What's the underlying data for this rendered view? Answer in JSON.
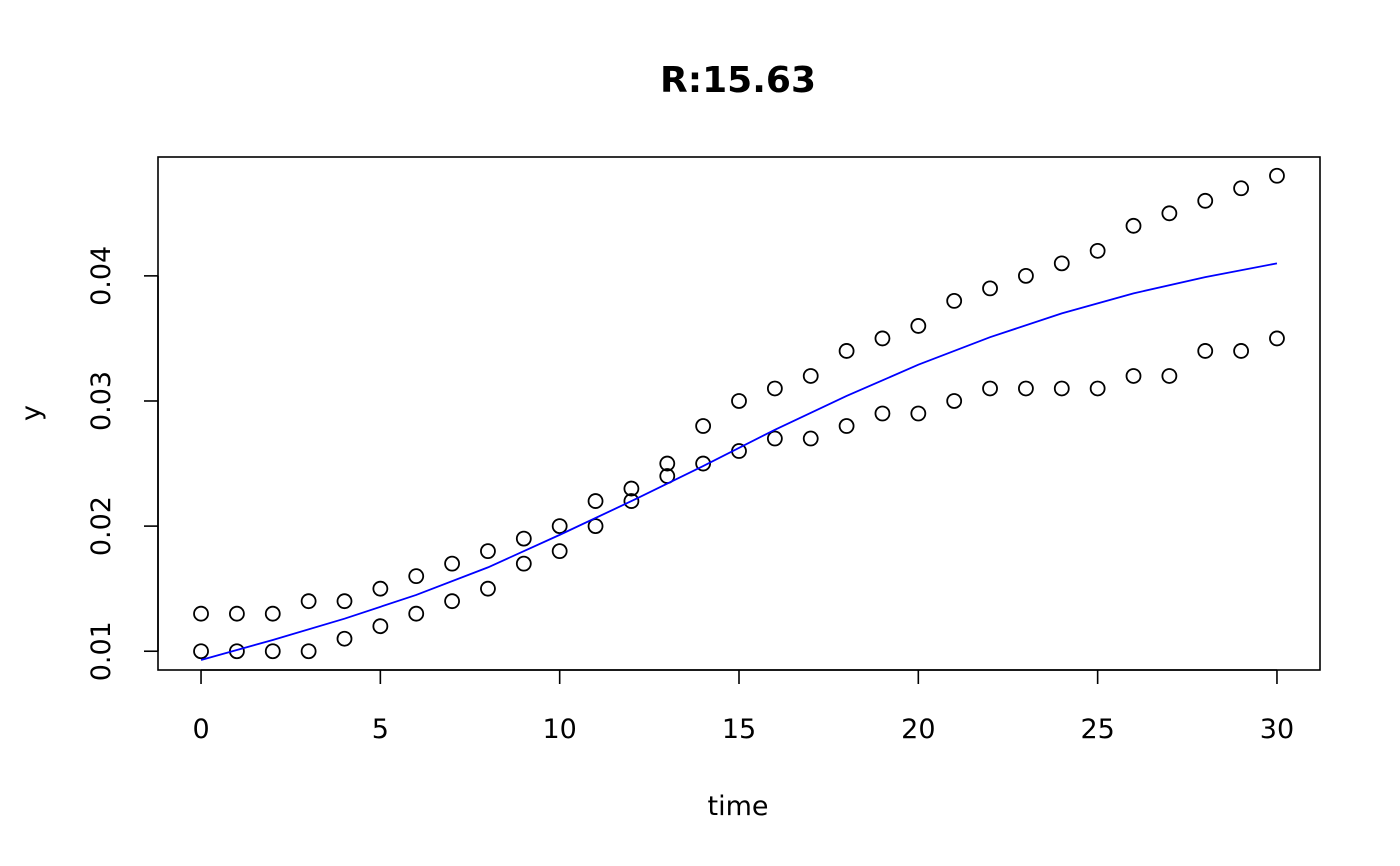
{
  "chart_data": {
    "type": "scatter",
    "title": "R:15.63",
    "xlabel": "time",
    "ylabel": "y",
    "xlim": [
      -1.2,
      31.2
    ],
    "ylim": [
      0.0085,
      0.0495
    ],
    "x_ticks": [
      0,
      5,
      10,
      15,
      20,
      25,
      30
    ],
    "x_tick_labels": [
      "0",
      "5",
      "10",
      "15",
      "20",
      "25",
      "30"
    ],
    "y_ticks": [
      0.01,
      0.02,
      0.03,
      0.04
    ],
    "y_tick_labels": [
      "0.01",
      "0.02",
      "0.03",
      "0.04"
    ],
    "grid": false,
    "legend": "none",
    "series": [
      {
        "kind": "points",
        "marker": "open-circle",
        "color": "#000000",
        "points": [
          [
            0,
            0.013
          ],
          [
            1,
            0.013
          ],
          [
            2,
            0.013
          ],
          [
            3,
            0.014
          ],
          [
            4,
            0.014
          ],
          [
            5,
            0.015
          ],
          [
            6,
            0.016
          ],
          [
            7,
            0.017
          ],
          [
            8,
            0.018
          ],
          [
            9,
            0.019
          ],
          [
            10,
            0.02
          ],
          [
            11,
            0.022
          ],
          [
            12,
            0.023
          ],
          [
            13,
            0.025
          ],
          [
            14,
            0.028
          ],
          [
            15,
            0.03
          ],
          [
            16,
            0.031
          ],
          [
            17,
            0.032
          ],
          [
            18,
            0.034
          ],
          [
            19,
            0.035
          ],
          [
            20,
            0.036
          ],
          [
            21,
            0.038
          ],
          [
            22,
            0.039
          ],
          [
            23,
            0.04
          ],
          [
            24,
            0.041
          ],
          [
            25,
            0.042
          ],
          [
            26,
            0.044
          ],
          [
            27,
            0.045
          ],
          [
            28,
            0.046
          ],
          [
            29,
            0.047
          ],
          [
            30,
            0.048
          ],
          [
            0,
            0.01
          ],
          [
            1,
            0.01
          ],
          [
            2,
            0.01
          ],
          [
            3,
            0.01
          ],
          [
            4,
            0.011
          ],
          [
            5,
            0.012
          ],
          [
            6,
            0.013
          ],
          [
            7,
            0.014
          ],
          [
            8,
            0.015
          ],
          [
            9,
            0.017
          ],
          [
            10,
            0.018
          ],
          [
            11,
            0.02
          ],
          [
            12,
            0.022
          ],
          [
            13,
            0.024
          ],
          [
            14,
            0.025
          ],
          [
            15,
            0.026
          ],
          [
            16,
            0.027
          ],
          [
            17,
            0.027
          ],
          [
            18,
            0.028
          ],
          [
            19,
            0.029
          ],
          [
            20,
            0.029
          ],
          [
            21,
            0.03
          ],
          [
            22,
            0.031
          ],
          [
            23,
            0.031
          ],
          [
            24,
            0.031
          ],
          [
            25,
            0.031
          ],
          [
            26,
            0.032
          ],
          [
            27,
            0.032
          ],
          [
            28,
            0.034
          ],
          [
            29,
            0.034
          ],
          [
            30,
            0.035
          ]
        ]
      },
      {
        "kind": "line",
        "color": "#0000ff",
        "points": [
          [
            0,
            0.0093
          ],
          [
            2,
            0.0109
          ],
          [
            4,
            0.0126
          ],
          [
            6,
            0.0145
          ],
          [
            8,
            0.0167
          ],
          [
            10,
            0.0193
          ],
          [
            12,
            0.022
          ],
          [
            14,
            0.0248
          ],
          [
            16,
            0.0277
          ],
          [
            18,
            0.0304
          ],
          [
            20,
            0.0329
          ],
          [
            22,
            0.0351
          ],
          [
            24,
            0.037
          ],
          [
            26,
            0.0386
          ],
          [
            28,
            0.0399
          ],
          [
            30,
            0.041
          ]
        ]
      }
    ]
  }
}
